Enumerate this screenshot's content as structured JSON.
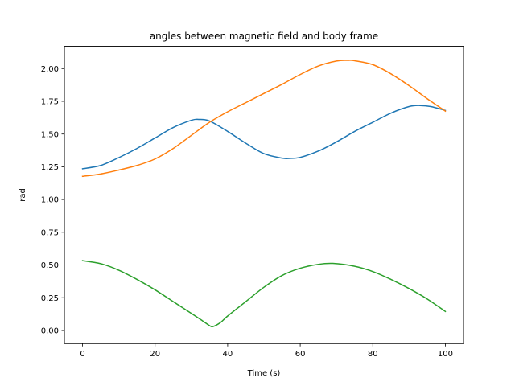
{
  "chart_data": {
    "type": "line",
    "title": "angles between magnetic field and body frame",
    "xlabel": "Time (s)",
    "ylabel": "rad",
    "xlim": [
      -5,
      105
    ],
    "ylim": [
      -0.1,
      2.17
    ],
    "xticks": [
      0,
      20,
      40,
      60,
      80,
      100
    ],
    "xtick_labels": [
      "0",
      "20",
      "40",
      "60",
      "80",
      "100"
    ],
    "yticks": [
      0,
      0.25,
      0.5,
      0.75,
      1.0,
      1.25,
      1.5,
      1.75,
      2.0
    ],
    "ytick_labels": [
      "0.00",
      "0.25",
      "0.50",
      "0.75",
      "1.00",
      "1.25",
      "1.50",
      "1.75",
      "2.00"
    ],
    "grid": false,
    "legend": "none",
    "series": [
      {
        "color": "#1f77b4",
        "x": [
          0,
          5,
          10,
          15,
          20,
          25,
          30,
          32,
          35,
          40,
          45,
          50,
          55,
          57,
          60,
          65,
          70,
          75,
          80,
          85,
          90,
          93,
          96,
          100
        ],
        "y": [
          1.235,
          1.26,
          1.32,
          1.39,
          1.47,
          1.55,
          1.605,
          1.612,
          1.6,
          1.52,
          1.43,
          1.35,
          1.316,
          1.314,
          1.322,
          1.37,
          1.44,
          1.52,
          1.59,
          1.66,
          1.71,
          1.718,
          1.71,
          1.68
        ]
      },
      {
        "color": "#ff7f0e",
        "x": [
          0,
          5,
          10,
          15,
          20,
          25,
          30,
          35,
          40,
          45,
          50,
          55,
          60,
          65,
          70,
          73,
          75,
          80,
          85,
          90,
          95,
          100
        ],
        "y": [
          1.177,
          1.195,
          1.225,
          1.26,
          1.31,
          1.39,
          1.49,
          1.59,
          1.67,
          1.74,
          1.81,
          1.88,
          1.955,
          2.02,
          2.058,
          2.063,
          2.06,
          2.03,
          1.96,
          1.87,
          1.77,
          1.675
        ]
      },
      {
        "color": "#2ca02c",
        "x": [
          0,
          5,
          10,
          15,
          20,
          25,
          30,
          33,
          35,
          36,
          38,
          40,
          45,
          50,
          55,
          60,
          65,
          69,
          75,
          80,
          85,
          90,
          95,
          100
        ],
        "y": [
          0.533,
          0.51,
          0.46,
          0.39,
          0.31,
          0.22,
          0.13,
          0.075,
          0.037,
          0.03,
          0.06,
          0.11,
          0.22,
          0.33,
          0.42,
          0.475,
          0.505,
          0.512,
          0.49,
          0.45,
          0.39,
          0.32,
          0.24,
          0.145
        ]
      }
    ]
  }
}
